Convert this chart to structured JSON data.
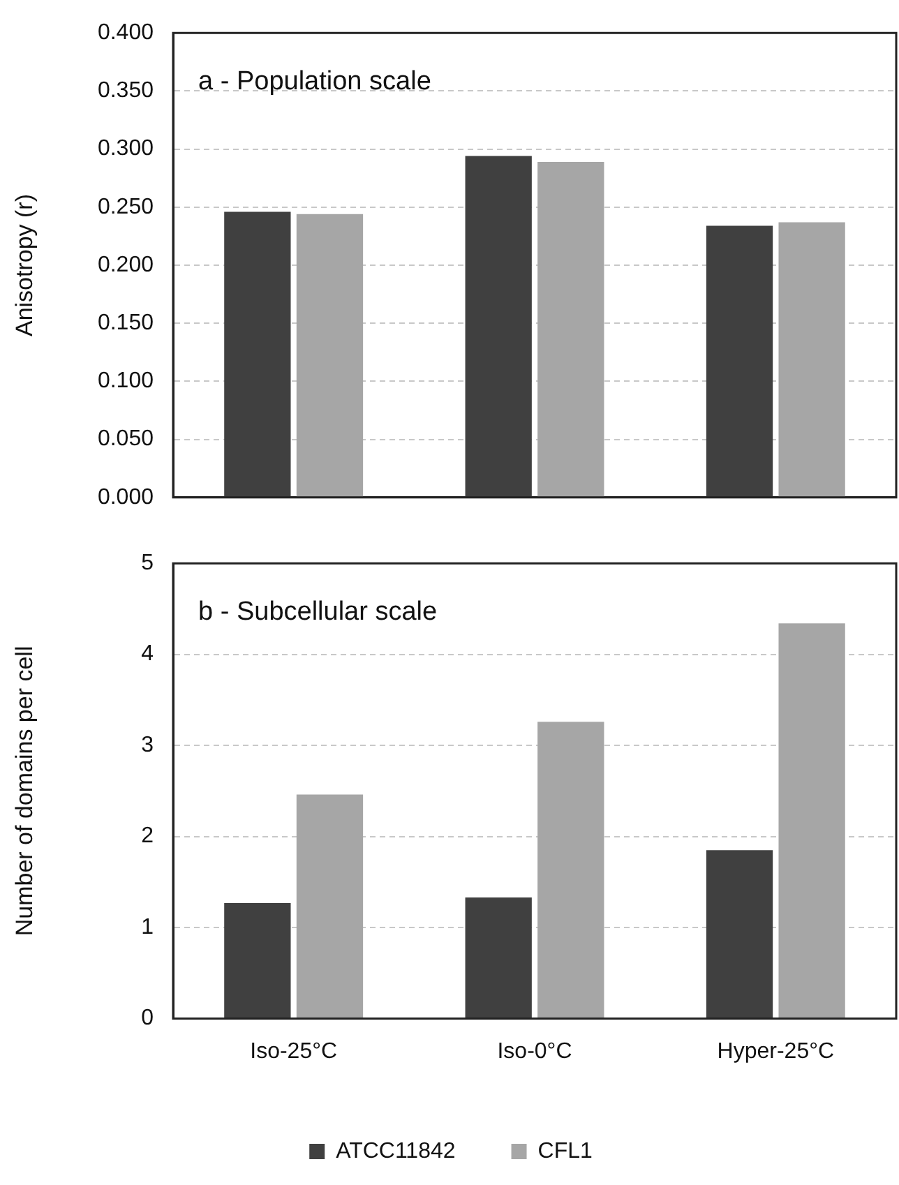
{
  "chart_data": [
    {
      "type": "bar",
      "title": "a - Population scale",
      "ylabel": "Anisotropy (r)",
      "categories": [
        null,
        null,
        null
      ],
      "series": [
        {
          "color": "#404040",
          "values": [
            0.246,
            0.294,
            0.234
          ]
        },
        {
          "color": "#a6a6a6",
          "values": [
            0.244,
            0.289,
            0.237
          ]
        }
      ],
      "ylim": [
        0,
        0.4
      ],
      "yticks": [
        {
          "value": 0,
          "label": "0.000"
        },
        {
          "value": 0.05,
          "label": "0.050"
        },
        {
          "value": 0.1,
          "label": "0.100"
        },
        {
          "value": 0.15,
          "label": "0.150"
        },
        {
          "value": 0.2,
          "label": "0.200"
        },
        {
          "value": 0.25,
          "label": "0.250"
        },
        {
          "value": 0.3,
          "label": "0.300"
        },
        {
          "value": 0.35,
          "label": "0.350"
        },
        {
          "value": 0.4,
          "label": "0.400"
        }
      ],
      "grid": "y",
      "tick_labels": "y"
    },
    {
      "type": "bar",
      "title": "b - Subcellular scale",
      "ylabel": "Number of domains per cell",
      "categories": [
        "Iso-25°C",
        "Iso-0°C",
        "Hyper-25°C"
      ],
      "series": [
        {
          "name": "ATCC11842",
          "color": "#404040",
          "values": [
            1.27,
            1.33,
            1.85
          ]
        },
        {
          "name": "CFL1",
          "color": "#a6a6a6",
          "values": [
            2.46,
            3.26,
            4.34
          ]
        }
      ],
      "ylim": [
        0,
        5
      ],
      "yticks": [
        0,
        1,
        2,
        3,
        4,
        5
      ],
      "grid": "y",
      "legend": "bottom"
    }
  ]
}
